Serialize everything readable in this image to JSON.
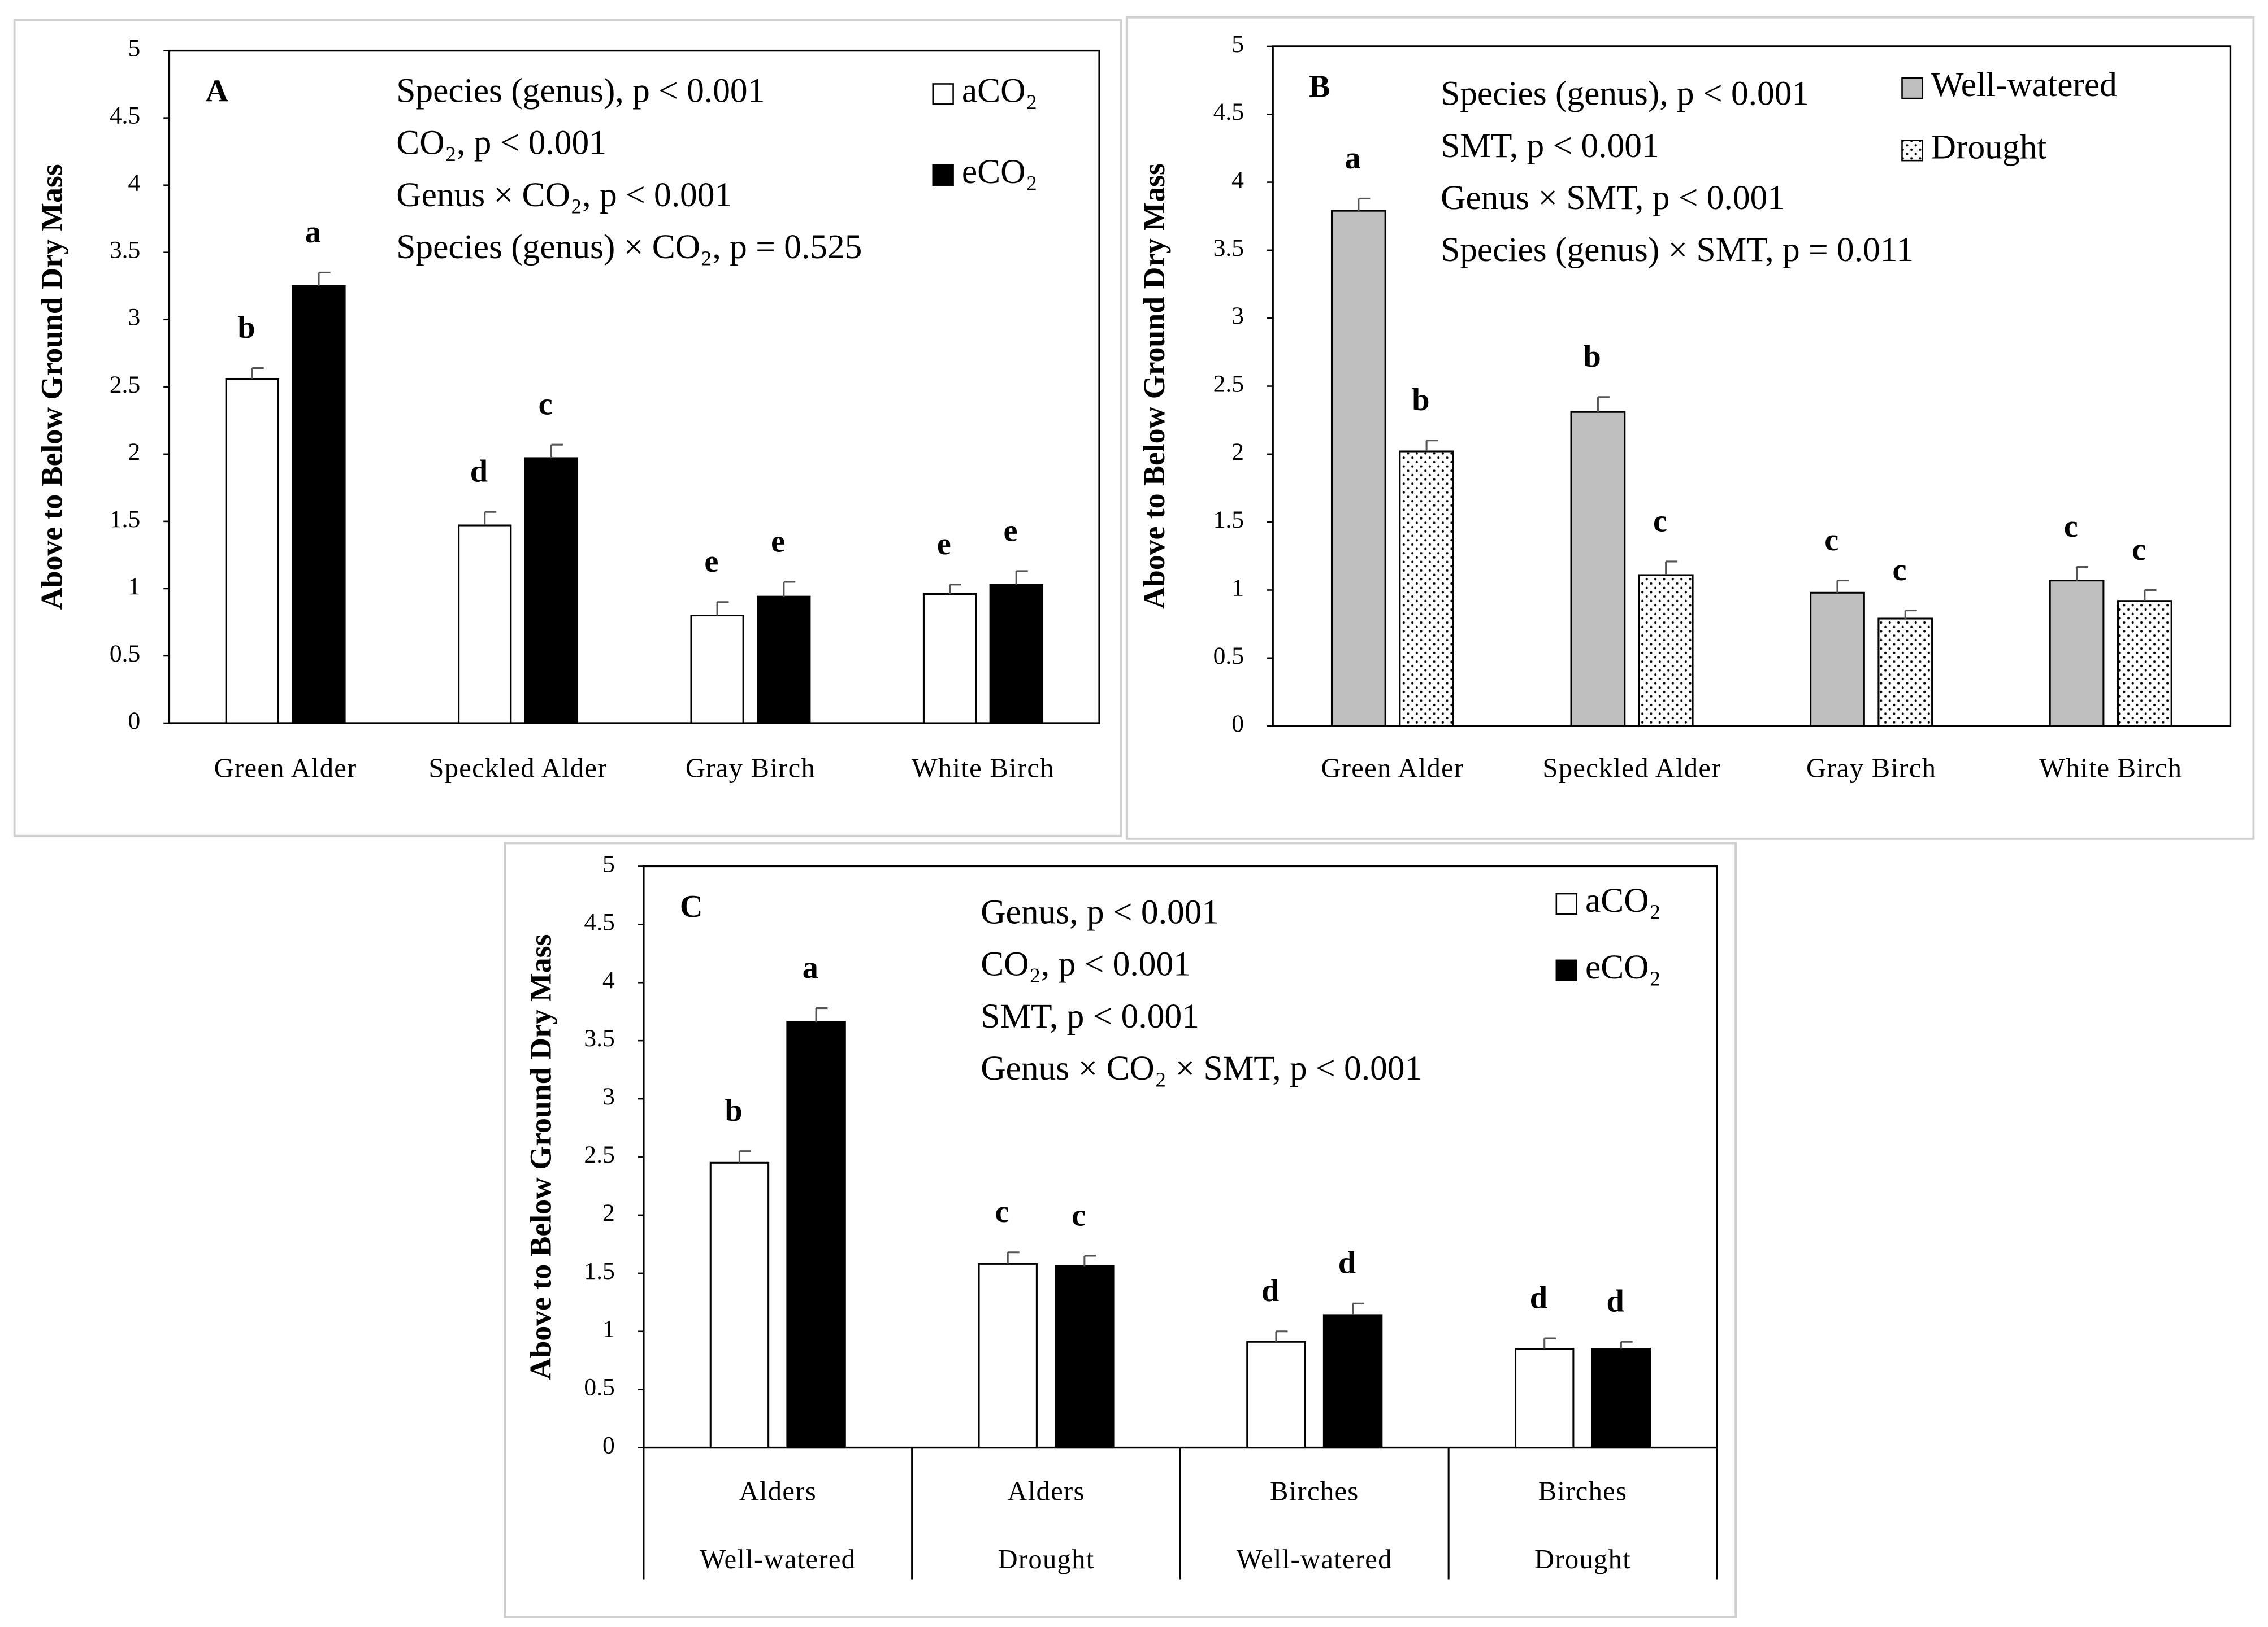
{
  "chart_data": [
    {
      "type": "bar",
      "panel": "A",
      "y_label": "Above to Below Ground Dry Mass",
      "annotations": [
        "Species (genus),  p < 0.001",
        "CO₂,  p < 0.001",
        "Genus × CO₂,  p < 0.001",
        "Species (genus) × CO₂,  p = 0.525"
      ],
      "categories": [
        "Green Alder",
        "Speckled Alder",
        "Gray Birch",
        "White Birch"
      ],
      "series": [
        {
          "name": "aCO₂",
          "color": "#ffffff",
          "values": [
            2.56,
            1.47,
            0.8,
            0.96
          ],
          "errors": [
            0.08,
            0.1,
            0.1,
            0.07
          ],
          "letters": [
            "b",
            "d",
            "e",
            "e"
          ]
        },
        {
          "name": "eCO₂",
          "color": "#000000",
          "values": [
            3.25,
            1.97,
            0.94,
            1.03
          ],
          "errors": [
            0.1,
            0.1,
            0.11,
            0.1
          ],
          "letters": [
            "a",
            "c",
            "e",
            "e"
          ]
        }
      ],
      "ylim": [
        0,
        5
      ],
      "yticks": [
        0,
        0.5,
        1,
        1.5,
        2,
        2.5,
        3,
        3.5,
        4,
        4.5,
        5
      ],
      "legend": "upper right"
    },
    {
      "type": "bar",
      "panel": "B",
      "y_label": "Above to Below Ground Dry Mass",
      "annotations": [
        "Species (genus),  p < 0.001",
        "SMT,  p < 0.001",
        "Genus × SMT,  p < 0.001",
        "Species (genus) × SMT,  p =  0.011"
      ],
      "categories": [
        "Green Alder",
        "Speckled Alder",
        "Gray Birch",
        "White Birch"
      ],
      "series": [
        {
          "name": "Well-watered",
          "color": "#bfbfbf",
          "values": [
            3.79,
            2.31,
            0.98,
            1.07
          ],
          "errors": [
            0.09,
            0.11,
            0.09,
            0.1
          ],
          "letters": [
            "a",
            "b",
            "c",
            "c"
          ]
        },
        {
          "name": "Drought",
          "color": "#ffffff",
          "pattern": "dots",
          "values": [
            2.02,
            1.11,
            0.79,
            0.92
          ],
          "errors": [
            0.08,
            0.1,
            0.06,
            0.08
          ],
          "letters": [
            "b",
            "c",
            "c",
            "c"
          ]
        }
      ],
      "ylim": [
        0,
        5
      ],
      "yticks": [
        0,
        0.5,
        1,
        1.5,
        2,
        2.5,
        3,
        3.5,
        4,
        4.5,
        5
      ],
      "legend": "upper right"
    },
    {
      "type": "bar",
      "panel": "C",
      "y_label": "Above to Below Ground Dry Mass",
      "annotations": [
        "Genus,  p < 0.001",
        "CO₂,  p < 0.001",
        "SMT,  p < 0.001",
        "Genus × CO₂ × SMT,  p < 0.001"
      ],
      "categories": [
        [
          "Alders",
          "Well-watered"
        ],
        [
          "Alders",
          "Drought"
        ],
        [
          "Birches",
          "Well-watered"
        ],
        [
          "Birches",
          "Drought"
        ]
      ],
      "series": [
        {
          "name": "aCO₂",
          "color": "#ffffff",
          "values": [
            2.45,
            1.58,
            0.91,
            0.85
          ],
          "errors": [
            0.1,
            0.1,
            0.09,
            0.09
          ],
          "letters": [
            "b",
            "c",
            "d",
            "d"
          ]
        },
        {
          "name": "eCO₂",
          "color": "#000000",
          "values": [
            3.66,
            1.56,
            1.14,
            0.85
          ],
          "errors": [
            0.12,
            0.09,
            0.1,
            0.06
          ],
          "letters": [
            "a",
            "c",
            "d",
            "d"
          ]
        }
      ],
      "ylim": [
        0,
        5
      ],
      "yticks": [
        0,
        0.5,
        1,
        1.5,
        2,
        2.5,
        3,
        3.5,
        4,
        4.5,
        5
      ],
      "legend": "upper right"
    }
  ]
}
